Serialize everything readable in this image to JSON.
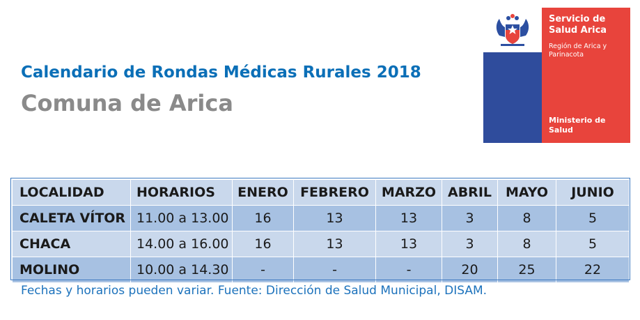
{
  "header": {
    "title": "Calendario de Rondas Médicas Rurales 2018",
    "subtitle": "Comuna de Arica"
  },
  "logo": {
    "line1": "Servicio de",
    "line2": "Salud Arica",
    "sub1": "Región de Arica y",
    "sub2": "Parinacota",
    "bottom1": "Ministerio de",
    "bottom2": "Salud",
    "colors": {
      "blue": "#2c4fa1",
      "red": "#e8443c"
    },
    "emblem": "chile-coat-of-arms-icon"
  },
  "table": {
    "headers": [
      "LOCALIDAD",
      "HORARIOS",
      "ENERO",
      "FEBRERO",
      "MARZO",
      "ABRIL",
      "MAYO",
      "JUNIO"
    ],
    "rows": [
      [
        "CALETA VÍTOR",
        "11.00 a 13.00",
        "16",
        "13",
        "13",
        "3",
        "8",
        "5"
      ],
      [
        "CHACA",
        "14.00 a 16.00",
        "16",
        "13",
        "13",
        "3",
        "8",
        "5"
      ],
      [
        "MOLINO",
        "10.00 a 14.30",
        "-",
        "-",
        "-",
        "20",
        "25",
        "22"
      ]
    ]
  },
  "footnote": "Fechas y horarios pueden variar. Fuente: Dirección de Salud Municipal, DISAM."
}
